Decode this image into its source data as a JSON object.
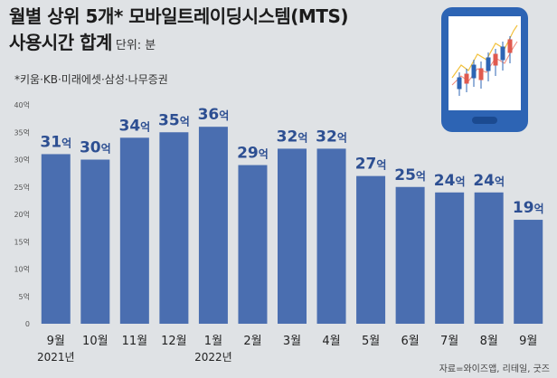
{
  "title": {
    "line1": "월별 상위 5개* 모바일트레이딩시스템(MTS)",
    "line2": "사용시간 합계",
    "unit": "단위: 분"
  },
  "footnote": "*키움·KB·미래에셋·삼성·나무증권",
  "source": "자료=와이즈앱, 리테일, 굿즈",
  "chart_data": {
    "type": "bar",
    "categories": [
      "9월",
      "10월",
      "11월",
      "12월",
      "1월",
      "2월",
      "3월",
      "4월",
      "5월",
      "6월",
      "7월",
      "8월",
      "9월"
    ],
    "year_labels": [
      {
        "index": 0,
        "label": "2021년"
      },
      {
        "index": 4,
        "label": "2022년"
      }
    ],
    "values": [
      31,
      30,
      34,
      35,
      36,
      29,
      32,
      32,
      27,
      25,
      24,
      24,
      19
    ],
    "value_labels": [
      "31억",
      "30억",
      "34억",
      "35억",
      "36억",
      "29억",
      "32억",
      "32억",
      "27억",
      "25억",
      "24억",
      "24억",
      "19억"
    ],
    "y_ticks": [
      "0",
      "5억",
      "10억",
      "15억",
      "20억",
      "25억",
      "30억",
      "35억",
      "40억"
    ],
    "ylim": [
      0,
      40
    ],
    "bar_color": "#4a6eb0",
    "label_color": "#2d4f92",
    "grid": false
  }
}
